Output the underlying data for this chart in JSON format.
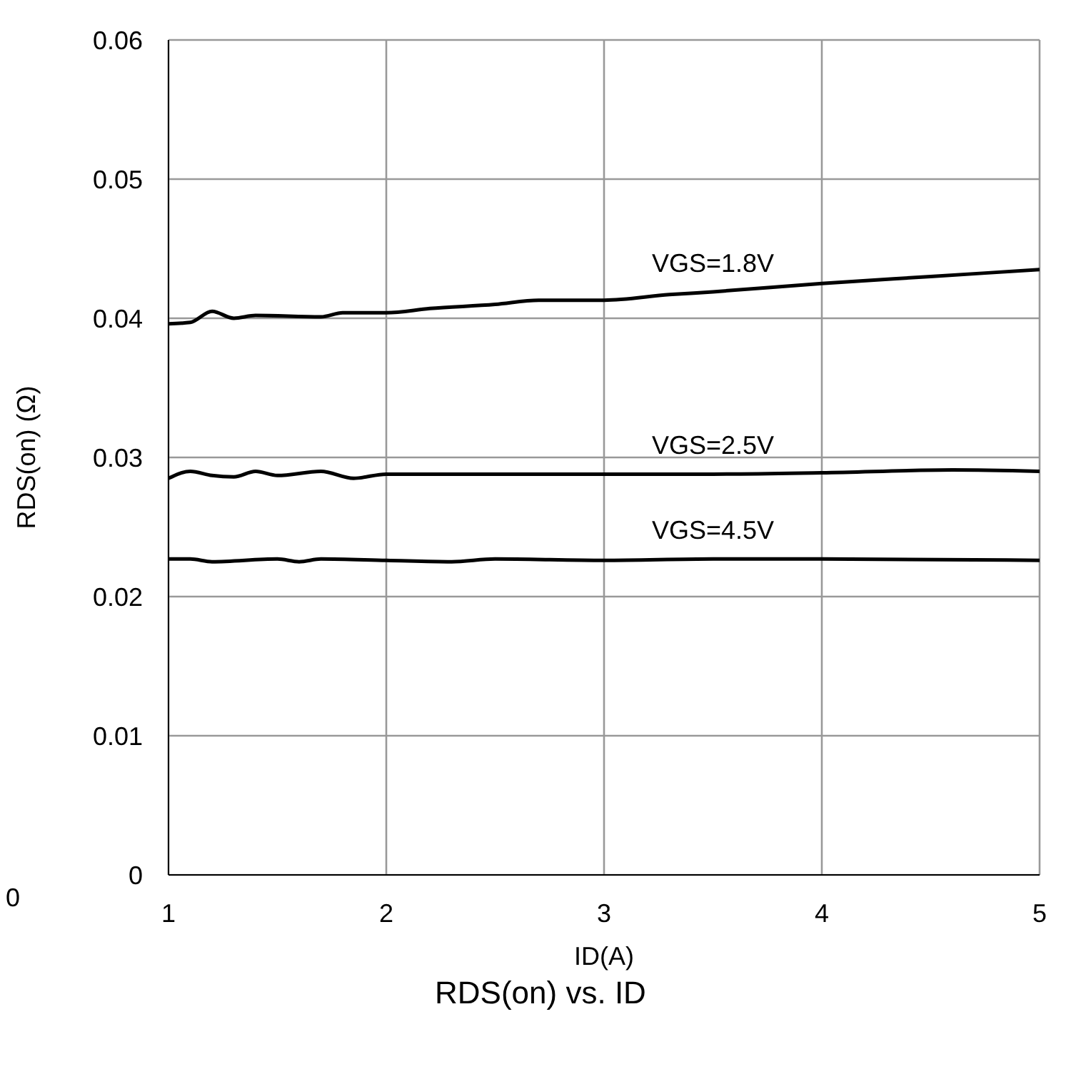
{
  "chart_data": {
    "type": "line",
    "title": "RDS(on) vs. ID",
    "xlabel": "ID(A)",
    "ylabel": "RDS(on) (Ω)",
    "xlim": [
      1,
      5
    ],
    "xticks": [
      1,
      2,
      3,
      4,
      5
    ],
    "ylim": [
      0,
      0.06
    ],
    "yticks": [
      0,
      0.01,
      0.02,
      0.03,
      0.04,
      0.05,
      0.06
    ],
    "grid": true,
    "marker": "none",
    "line_style": "solid",
    "annotations": [
      "0"
    ],
    "series": [
      {
        "name": "VGS=1.8V",
        "color": "#000000",
        "x": [
          1,
          1.1,
          1.2,
          1.3,
          1.4,
          1.7,
          1.8,
          2,
          2.2,
          2.5,
          2.7,
          3,
          3.3,
          3.5,
          4,
          4.5,
          5
        ],
        "values": [
          0.0396,
          0.0397,
          0.0405,
          0.04,
          0.0402,
          0.0401,
          0.0404,
          0.0404,
          0.0407,
          0.041,
          0.0413,
          0.0413,
          0.0417,
          0.0419,
          0.0425,
          0.043,
          0.0435
        ]
      },
      {
        "name": "VGS=2.5V",
        "color": "#000000",
        "x": [
          1,
          1.1,
          1.2,
          1.3,
          1.4,
          1.5,
          1.7,
          1.85,
          2,
          2.5,
          3,
          3.5,
          4,
          4.6,
          5
        ],
        "values": [
          0.0285,
          0.029,
          0.0287,
          0.0286,
          0.029,
          0.0287,
          0.029,
          0.0285,
          0.0288,
          0.0288,
          0.0288,
          0.0288,
          0.0289,
          0.0291,
          0.029
        ]
      },
      {
        "name": "VGS=4.5V",
        "color": "#000000",
        "x": [
          1,
          1.1,
          1.2,
          1.5,
          1.6,
          1.7,
          2,
          2.3,
          2.5,
          3,
          3.5,
          4,
          5
        ],
        "values": [
          0.0227,
          0.0227,
          0.0225,
          0.0227,
          0.0225,
          0.0227,
          0.0226,
          0.0225,
          0.0227,
          0.0226,
          0.0227,
          0.0227,
          0.0226
        ]
      }
    ]
  }
}
